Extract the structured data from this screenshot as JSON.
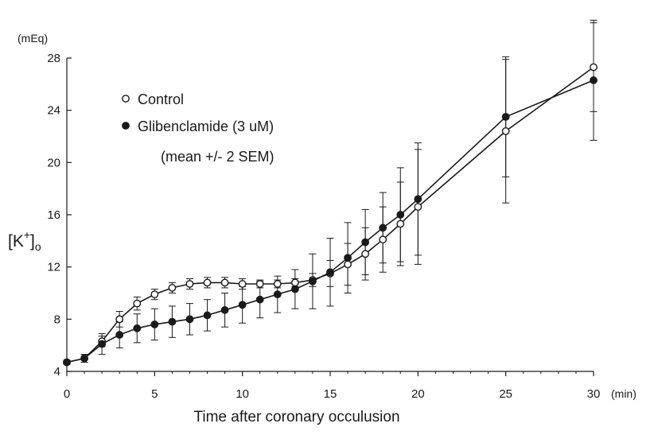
{
  "chart_data": {
    "type": "line",
    "xlabel": "Time after coronary occulusion",
    "xunit": "(min)",
    "ylabel": {
      "open": "[K",
      "sup": "+",
      "close": "]",
      "sub": "o"
    },
    "yunit": "(mEq)",
    "xlim": [
      0,
      30
    ],
    "ylim": [
      4,
      28
    ],
    "xticks": [
      0,
      5,
      10,
      15,
      20,
      25,
      30
    ],
    "yticks": [
      4,
      8,
      12,
      16,
      20,
      24,
      28
    ],
    "grid": false,
    "legend_position": "top-left",
    "legend_note": "(mean +/- 2 SEM)",
    "series": [
      {
        "name": "Control",
        "marker": "open-circle",
        "x": [
          0,
          1,
          2,
          3,
          4,
          5,
          6,
          7,
          8,
          9,
          10,
          11,
          12,
          13,
          14,
          15,
          16,
          17,
          18,
          19,
          20,
          25,
          30
        ],
        "y": [
          4.7,
          5.0,
          6.3,
          8.0,
          9.2,
          9.9,
          10.4,
          10.7,
          10.8,
          10.8,
          10.7,
          10.7,
          10.7,
          10.8,
          11.0,
          11.5,
          12.2,
          13.0,
          14.1,
          15.3,
          16.6,
          22.4,
          27.3
        ],
        "err": [
          0.15,
          0.3,
          0.4,
          0.6,
          0.5,
          0.4,
          0.4,
          0.4,
          0.4,
          0.4,
          0.4,
          0.3,
          0.3,
          0.3,
          0.5,
          1.0,
          1.6,
          2.0,
          2.5,
          3.2,
          4.4,
          5.5,
          3.4
        ]
      },
      {
        "name": "Glibenclamide (3 uM)",
        "marker": "filled-circle",
        "x": [
          0,
          1,
          2,
          3,
          4,
          5,
          6,
          7,
          8,
          9,
          10,
          11,
          12,
          13,
          14,
          15,
          16,
          17,
          18,
          19,
          20,
          25,
          30
        ],
        "y": [
          4.7,
          5.0,
          6.1,
          6.8,
          7.3,
          7.6,
          7.8,
          8.0,
          8.3,
          8.7,
          9.1,
          9.5,
          9.9,
          10.3,
          10.9,
          11.6,
          12.7,
          13.9,
          15.0,
          16.0,
          17.2,
          23.5,
          26.3
        ],
        "err": [
          0.15,
          0.3,
          0.8,
          1.0,
          1.1,
          1.2,
          1.2,
          1.2,
          1.2,
          1.3,
          1.4,
          1.4,
          1.4,
          1.5,
          2.1,
          2.6,
          2.7,
          2.5,
          2.7,
          3.6,
          4.3,
          4.6,
          4.6
        ]
      }
    ]
  }
}
